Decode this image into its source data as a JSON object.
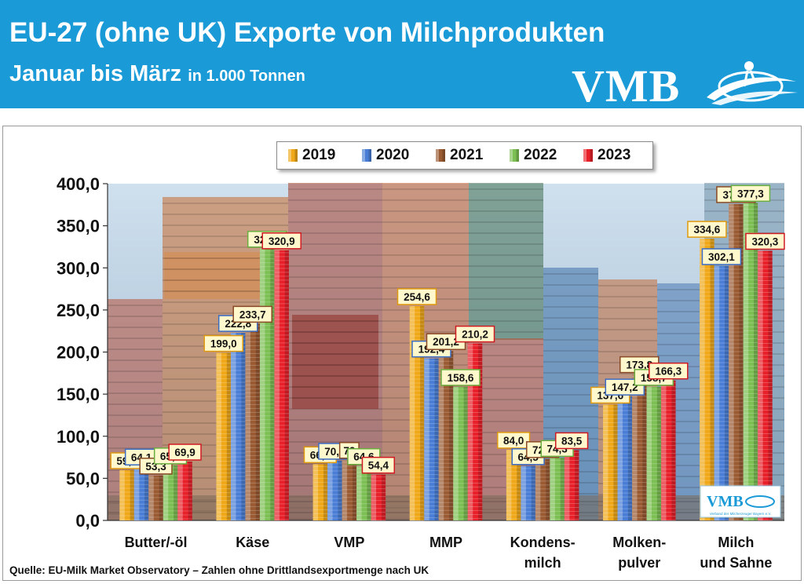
{
  "header": {
    "title_line1": "EU-27 (ohne UK) Exporte von Milchprodukten",
    "title_line2": "Januar bis März",
    "unit": "in 1.000 Tonnen",
    "logo_text": "VMB",
    "colors": {
      "banner": "#1a9ad6",
      "text": "#ffffff"
    }
  },
  "watermark_logo": {
    "text": "VMB",
    "subtext": "Verband der Milcherzeuger Bayern e.V."
  },
  "source": "Quelle: EU-Milk Market Observatory – Zahlen ohne Drittlandsexportmenge nach UK",
  "chart_data": {
    "type": "bar",
    "title": "EU-27 (ohne UK) Exporte von Milchprodukten Januar bis März",
    "ylabel": "",
    "xlabel": "",
    "ylim": [
      0,
      400
    ],
    "yticks": [
      "0,0",
      "50,0",
      "100,0",
      "150,0",
      "200,0",
      "250,0",
      "300,0",
      "350,0",
      "400,0"
    ],
    "grid": false,
    "legend_position": "top-center",
    "categories": [
      {
        "line1": "Butter/-öl",
        "line2": ""
      },
      {
        "line1": "Käse",
        "line2": ""
      },
      {
        "line1": "VMP",
        "line2": ""
      },
      {
        "line1": "MMP",
        "line2": ""
      },
      {
        "line1": "Kondens-",
        "line2": "milch"
      },
      {
        "line1": "Molken-",
        "line2": "pulver"
      },
      {
        "line1": "Milch",
        "line2": "und Sahne"
      }
    ],
    "series": [
      {
        "name": "2019",
        "color": "#f0a818",
        "label_border": "#e09a10",
        "values": [
          59.7,
          199.0,
          66.8,
          254.6,
          84.0,
          137.6,
          334.6
        ],
        "labels": [
          "59,7",
          "199,0",
          "66,8",
          "254,6",
          "84,0",
          "137,6",
          "334,6"
        ]
      },
      {
        "name": "2020",
        "color": "#4a7ed6",
        "label_border": "#3a6cc4",
        "values": [
          64.1,
          222.8,
          70.9,
          192.4,
          64.5,
          147.2,
          302.1
        ],
        "labels": [
          "64,1",
          "222,8",
          "70,9",
          "192,4",
          "64,5",
          "147,2",
          "302,1"
        ]
      },
      {
        "name": "2021",
        "color": "#9a5a32",
        "label_border": "#8a4a26",
        "values": [
          53.3,
          233.7,
          72,
          201.2,
          72.9,
          173.8,
          375.8
        ],
        "labels": [
          "53,3",
          "233,7",
          "72",
          "201,2",
          "72,9",
          "173,8",
          "375,8"
        ]
      },
      {
        "name": "2022",
        "color": "#7cbf52",
        "label_border": "#6aae40",
        "values": [
          65.4,
          322.8,
          64.6,
          158.6,
          74.3,
          158.7,
          377.3
        ],
        "labels": [
          "65,4",
          "322,8",
          "64,6",
          "158,6",
          "74,3",
          "158,7",
          "377,3"
        ]
      },
      {
        "name": "2023",
        "color": "#e8202a",
        "label_border": "#d01a22",
        "values": [
          69.9,
          320.9,
          54.4,
          210.2,
          83.5,
          166.3,
          320.3
        ],
        "labels": [
          "69,9",
          "320,9",
          "54,4",
          "210,2",
          "83,5",
          "166,3",
          "320,3"
        ]
      }
    ]
  }
}
